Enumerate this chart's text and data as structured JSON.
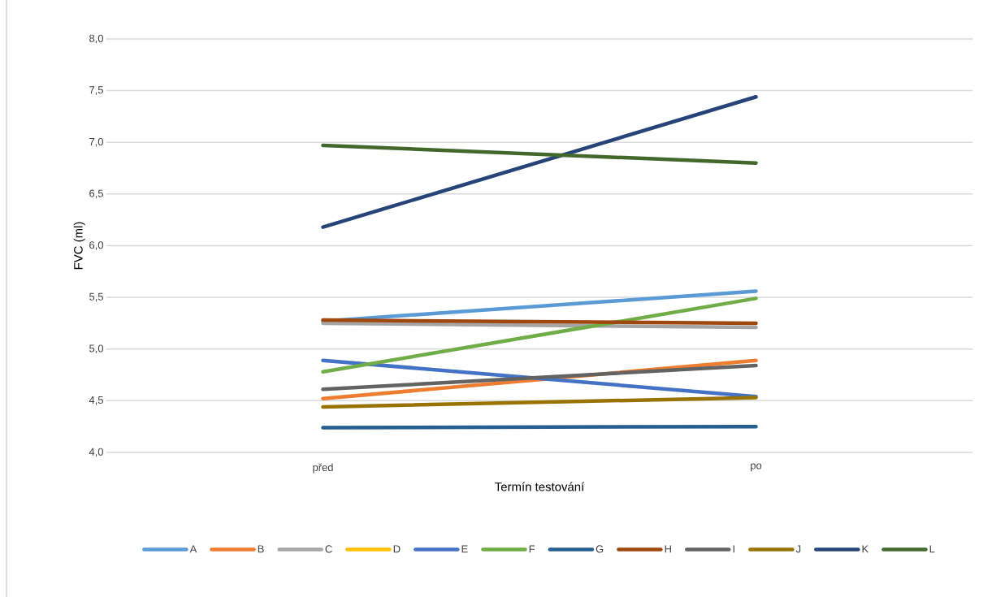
{
  "chart_data": {
    "type": "line",
    "xlabel": "Termín testování",
    "ylabel": "FVC (ml)",
    "categories": [
      "před",
      "po"
    ],
    "ylim": [
      4.0,
      8.0
    ],
    "yticks": [
      {
        "value": 4.0,
        "label": "4,0"
      },
      {
        "value": 4.5,
        "label": "4,5"
      },
      {
        "value": 5.0,
        "label": "5,0"
      },
      {
        "value": 5.5,
        "label": "5,5"
      },
      {
        "value": 6.0,
        "label": "6,0"
      },
      {
        "value": 6.5,
        "label": "6,5"
      },
      {
        "value": 7.0,
        "label": "7,0"
      },
      {
        "value": 7.5,
        "label": "7,5"
      },
      {
        "value": 8.0,
        "label": "8,0"
      }
    ],
    "grid": "y",
    "legend": "bottom",
    "marker": "none",
    "series": [
      {
        "name": "A",
        "color": "#5b9bd5",
        "values": [
          5.27,
          5.56
        ]
      },
      {
        "name": "B",
        "color": "#ed7d31",
        "values": [
          4.52,
          4.89
        ]
      },
      {
        "name": "C",
        "color": "#a5a5a5",
        "values": [
          5.25,
          5.21
        ]
      },
      {
        "name": "D",
        "color": "#ffc000",
        "values": [
          null,
          null
        ]
      },
      {
        "name": "E",
        "color": "#4472c4",
        "values": [
          4.89,
          4.54
        ]
      },
      {
        "name": "F",
        "color": "#70ad47",
        "values": [
          4.78,
          5.49
        ]
      },
      {
        "name": "G",
        "color": "#255e91",
        "values": [
          4.24,
          4.25
        ]
      },
      {
        "name": "H",
        "color": "#9e480e",
        "values": [
          5.28,
          5.25
        ]
      },
      {
        "name": "I",
        "color": "#636363",
        "values": [
          4.61,
          4.84
        ]
      },
      {
        "name": "J",
        "color": "#997300",
        "values": [
          4.44,
          4.53
        ]
      },
      {
        "name": "K",
        "color": "#264478",
        "values": [
          6.18,
          7.44
        ]
      },
      {
        "name": "L",
        "color": "#43682b",
        "values": [
          6.97,
          6.8
        ]
      }
    ]
  }
}
